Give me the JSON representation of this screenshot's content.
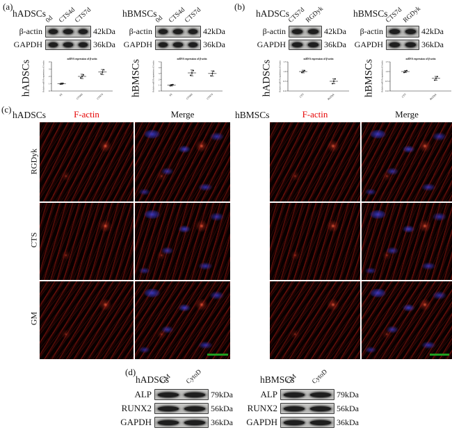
{
  "panel_labels": {
    "a": "(a)",
    "b": "(b)",
    "c": "(c)",
    "d": "(d)"
  },
  "blots": {
    "a_hadscs": {
      "cell": "hADSCs",
      "lanes": [
        "0d",
        "CTS4d",
        "CTS7d"
      ],
      "rows": [
        {
          "protein": "β-actin",
          "kda": "42kDa"
        },
        {
          "protein": "GAPDH",
          "kda": "36kDa"
        }
      ]
    },
    "a_hbmscs": {
      "cell": "hBMSCs",
      "lanes": [
        "0d",
        "CTS4d",
        "CTS7d"
      ],
      "rows": [
        {
          "protein": "β-actin",
          "kda": "42kDa"
        },
        {
          "protein": "GAPDH",
          "kda": "36kDa"
        }
      ]
    },
    "b_hadscs": {
      "cell": "hADSCs",
      "lanes": [
        "CTS7d",
        "RGDyk"
      ],
      "rows": [
        {
          "protein": "β-actin",
          "kda": "42kDa"
        },
        {
          "protein": "GAPDH",
          "kda": "36kDa"
        }
      ]
    },
    "b_hbmscs": {
      "cell": "hBMSCs",
      "lanes": [
        "CTS7d",
        "RGDyk"
      ],
      "rows": [
        {
          "protein": "β-actin",
          "kda": "42kDa"
        },
        {
          "protein": "GAPDH",
          "kda": "36kDa"
        }
      ]
    },
    "d_hadscs": {
      "cell": "hADSCs",
      "lanes": [
        "GM",
        "CytoD"
      ],
      "rows": [
        {
          "protein": "ALP",
          "kda": "79kDa"
        },
        {
          "protein": "RUNX2",
          "kda": "56kDa"
        },
        {
          "protein": "GAPDH",
          "kda": "36kDa"
        }
      ]
    },
    "d_hbmscs": {
      "cell": "hBMSCs",
      "lanes": [
        "GM",
        "CytoD"
      ],
      "rows": [
        {
          "protein": "ALP",
          "kda": "79kDa"
        },
        {
          "protein": "RUNX2",
          "kda": "56kDa"
        },
        {
          "protein": "GAPDH",
          "kda": "36kDa"
        }
      ]
    }
  },
  "chart_data": [
    {
      "id": "a_hadscs",
      "type": "scatter",
      "side_label": "hADSCs",
      "title": "mRNA expression of β-actin",
      "ylabel": "Relative mRNA expression of β-actin",
      "categories": [
        "0d",
        "CTS4d",
        "CTS7d"
      ],
      "means": [
        1.0,
        2.0,
        2.6
      ],
      "errors": [
        0.1,
        0.3,
        0.35
      ],
      "points": [
        [
          0.95,
          1.0,
          1.05
        ],
        [
          1.8,
          2.0,
          2.2
        ],
        [
          2.35,
          2.6,
          2.9
        ]
      ],
      "ylim": [
        0,
        4
      ],
      "yticks": [
        "0",
        "1",
        "2",
        "3",
        "4"
      ]
    },
    {
      "id": "a_hbmscs",
      "type": "scatter",
      "side_label": "hBMSCs",
      "title": "mRNA expression of β-actin",
      "ylabel": "Relative mRNA expression of β-actin",
      "categories": [
        "0d",
        "CTS4d",
        "CTS7d"
      ],
      "means": [
        1.0,
        3.1,
        3.0
      ],
      "errors": [
        0.15,
        0.5,
        0.45
      ],
      "points": [
        [
          0.9,
          1.0,
          1.1
        ],
        [
          2.7,
          3.1,
          3.5
        ],
        [
          2.6,
          3.0,
          3.4
        ]
      ],
      "ylim": [
        0,
        5
      ],
      "yticks": [
        "0",
        "1",
        "2",
        "3",
        "4",
        "5"
      ]
    },
    {
      "id": "b_hadscs",
      "type": "scatter",
      "side_label": "hADSCs",
      "title": "mRNA expression of β-actin",
      "ylabel": "Relative mRNA expression of β-actin",
      "categories": [
        "CTS",
        "RGDyk"
      ],
      "means": [
        1.0,
        0.5
      ],
      "errors": [
        0.07,
        0.13
      ],
      "points": [
        [
          0.95,
          1.0,
          1.05
        ],
        [
          0.38,
          0.5,
          0.62
        ]
      ],
      "ylim": [
        0,
        1.5
      ],
      "yticks": [
        "0.0",
        "0.5",
        "1.0",
        "1.5"
      ]
    },
    {
      "id": "b_hbmscs",
      "type": "scatter",
      "side_label": "hBMSCs",
      "title": "mRNA expression of β-actin",
      "ylabel": "Relative mRNA expression of β-actin",
      "categories": [
        "CTS",
        "RGDyk"
      ],
      "means": [
        1.0,
        0.65
      ],
      "errors": [
        0.06,
        0.1
      ],
      "points": [
        [
          0.95,
          1.0,
          1.05
        ],
        [
          0.56,
          0.65,
          0.74
        ]
      ],
      "ylim": [
        0,
        1.5
      ],
      "yticks": [
        "0.0",
        "0.5",
        "1.0",
        "1.5"
      ]
    }
  ],
  "microscopy": {
    "left": {
      "cell": "hADSCs",
      "columns": [
        {
          "label": "F-actin",
          "color": "#e60000"
        },
        {
          "label": "Merge",
          "color": "#1a1a1a"
        }
      ],
      "rows": [
        "RGDyk",
        "CTS",
        "GM"
      ]
    },
    "right": {
      "cell": "hBMSCs",
      "columns": [
        {
          "label": "F-actin",
          "color": "#e60000"
        },
        {
          "label": "Merge",
          "color": "#1a1a1a"
        }
      ],
      "rows": [
        "RGDyk",
        "CTS",
        "GM"
      ]
    }
  },
  "colors": {
    "f_actin_label": "#e60000",
    "scale_bar": "#1f9e1f",
    "nuclei": "#3c3cd2",
    "fibers": "#9e1810"
  }
}
